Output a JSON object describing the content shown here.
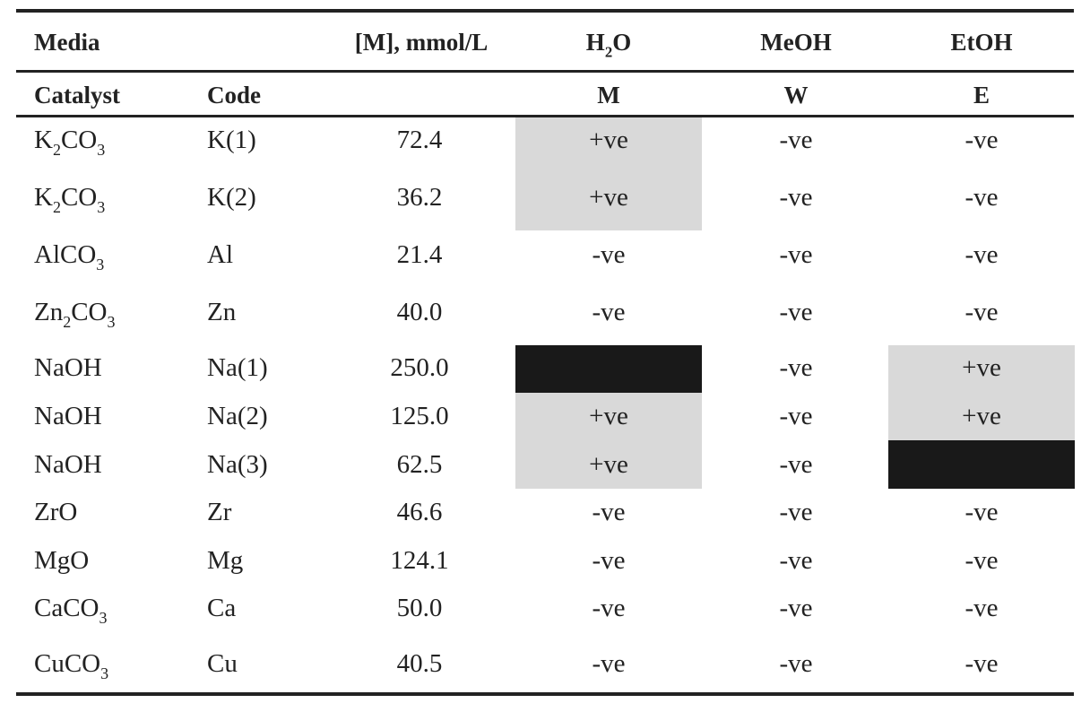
{
  "colors": {
    "positive_highlight": "#d9d9d9",
    "blackout": "#191919",
    "text": "#222222"
  },
  "header": {
    "media_label": "Media",
    "concentration_label": "[M], mmol/L",
    "media": [
      {
        "base": "H",
        "sub": "2",
        "tail": "O"
      },
      {
        "base": "MeOH",
        "sub": "",
        "tail": ""
      },
      {
        "base": "EtOH",
        "sub": "",
        "tail": ""
      }
    ],
    "catalyst_label": "Catalyst",
    "code_label": "Code",
    "media_codes": [
      "M",
      "W",
      "E"
    ]
  },
  "rows": [
    {
      "catalyst": {
        "a": "K",
        "a_sub": "2",
        "b": "CO",
        "b_sub": "3"
      },
      "code": "K(1)",
      "conc": "72.4",
      "results": [
        "+ve",
        "-ve",
        "-ve"
      ],
      "shade": [
        "grey",
        "none",
        "none"
      ]
    },
    {
      "catalyst": {
        "a": "K",
        "a_sub": "2",
        "b": "CO",
        "b_sub": "3"
      },
      "code": "K(2)",
      "conc": "36.2",
      "results": [
        "+ve",
        "-ve",
        "-ve"
      ],
      "shade": [
        "grey",
        "none",
        "none"
      ]
    },
    {
      "catalyst": {
        "a": "AlCO",
        "a_sub": "3",
        "b": "",
        "b_sub": ""
      },
      "code": "Al",
      "conc": "21.4",
      "results": [
        "-ve",
        "-ve",
        "-ve"
      ],
      "shade": [
        "none",
        "none",
        "none"
      ]
    },
    {
      "catalyst": {
        "a": "Zn",
        "a_sub": "2",
        "b": "CO",
        "b_sub": "3"
      },
      "code": "Zn",
      "conc": "40.0",
      "results": [
        "-ve",
        "-ve",
        "-ve"
      ],
      "shade": [
        "none",
        "none",
        "none"
      ]
    },
    {
      "catalyst": {
        "a": "NaOH",
        "a_sub": "",
        "b": "",
        "b_sub": ""
      },
      "code": "Na(1)",
      "conc": "250.0",
      "results": [
        "",
        "-ve",
        "+ve"
      ],
      "shade": [
        "black",
        "none",
        "grey"
      ]
    },
    {
      "catalyst": {
        "a": "NaOH",
        "a_sub": "",
        "b": "",
        "b_sub": ""
      },
      "code": "Na(2)",
      "conc": "125.0",
      "results": [
        "+ve",
        "-ve",
        "+ve"
      ],
      "shade": [
        "grey",
        "none",
        "grey"
      ]
    },
    {
      "catalyst": {
        "a": "NaOH",
        "a_sub": "",
        "b": "",
        "b_sub": ""
      },
      "code": "Na(3)",
      "conc": "62.5",
      "results": [
        "+ve",
        "-ve",
        ""
      ],
      "shade": [
        "grey",
        "none",
        "black"
      ]
    },
    {
      "catalyst": {
        "a": "ZrO",
        "a_sub": "",
        "b": "",
        "b_sub": ""
      },
      "code": "Zr",
      "conc": "46.6",
      "results": [
        "-ve",
        "-ve",
        "-ve"
      ],
      "shade": [
        "none",
        "none",
        "none"
      ]
    },
    {
      "catalyst": {
        "a": "MgO",
        "a_sub": "",
        "b": "",
        "b_sub": ""
      },
      "code": "Mg",
      "conc": "124.1",
      "results": [
        "-ve",
        "-ve",
        "-ve"
      ],
      "shade": [
        "none",
        "none",
        "none"
      ]
    },
    {
      "catalyst": {
        "a": "CaCO",
        "a_sub": "3",
        "b": "",
        "b_sub": ""
      },
      "code": "Ca",
      "conc": "50.0",
      "results": [
        "-ve",
        "-ve",
        "-ve"
      ],
      "shade": [
        "none",
        "none",
        "none"
      ]
    },
    {
      "catalyst": {
        "a": "CuCO",
        "a_sub": "3",
        "b": "",
        "b_sub": ""
      },
      "code": "Cu",
      "conc": "40.5",
      "results": [
        "-ve",
        "-ve",
        "-ve"
      ],
      "shade": [
        "none",
        "none",
        "none"
      ]
    }
  ]
}
